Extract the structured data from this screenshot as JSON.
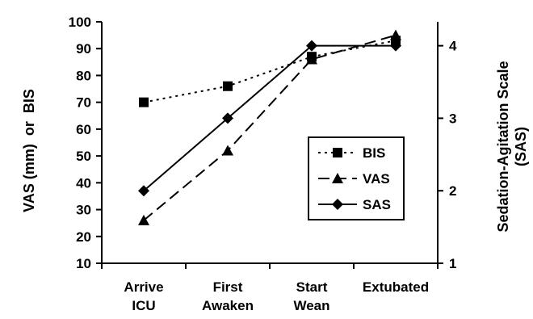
{
  "chart_data": {
    "type": "line",
    "categories": [
      [
        "Arrive",
        "ICU"
      ],
      [
        "First",
        "Awaken"
      ],
      [
        "Start",
        "Wean"
      ],
      [
        "Extubated"
      ]
    ],
    "ylabel": "VAS (mm)  or  BIS",
    "ylabel_right": [
      "Sedation-Agitation Scale",
      "(SAS)"
    ],
    "ylim": [
      10,
      100
    ],
    "y_ticks": [
      "10",
      "20",
      "30",
      "40",
      "50",
      "60",
      "70",
      "80",
      "90",
      "100"
    ],
    "ylim_right": [
      1,
      4.33
    ],
    "y_right_ticks": [
      "1",
      "2",
      "3",
      "4"
    ],
    "grid": false,
    "legend_position": "right-center",
    "series": [
      {
        "name": "BIS",
        "axis": "left",
        "marker": "square",
        "dash": "dotted",
        "values": [
          70,
          76,
          87,
          93
        ]
      },
      {
        "name": "VAS",
        "axis": "left",
        "marker": "triangle",
        "dash": "dashed",
        "values": [
          26,
          52,
          86,
          95
        ]
      },
      {
        "name": "SAS",
        "axis": "right",
        "marker": "diamond",
        "dash": "solid",
        "values": [
          2,
          3,
          4,
          4
        ]
      }
    ]
  }
}
